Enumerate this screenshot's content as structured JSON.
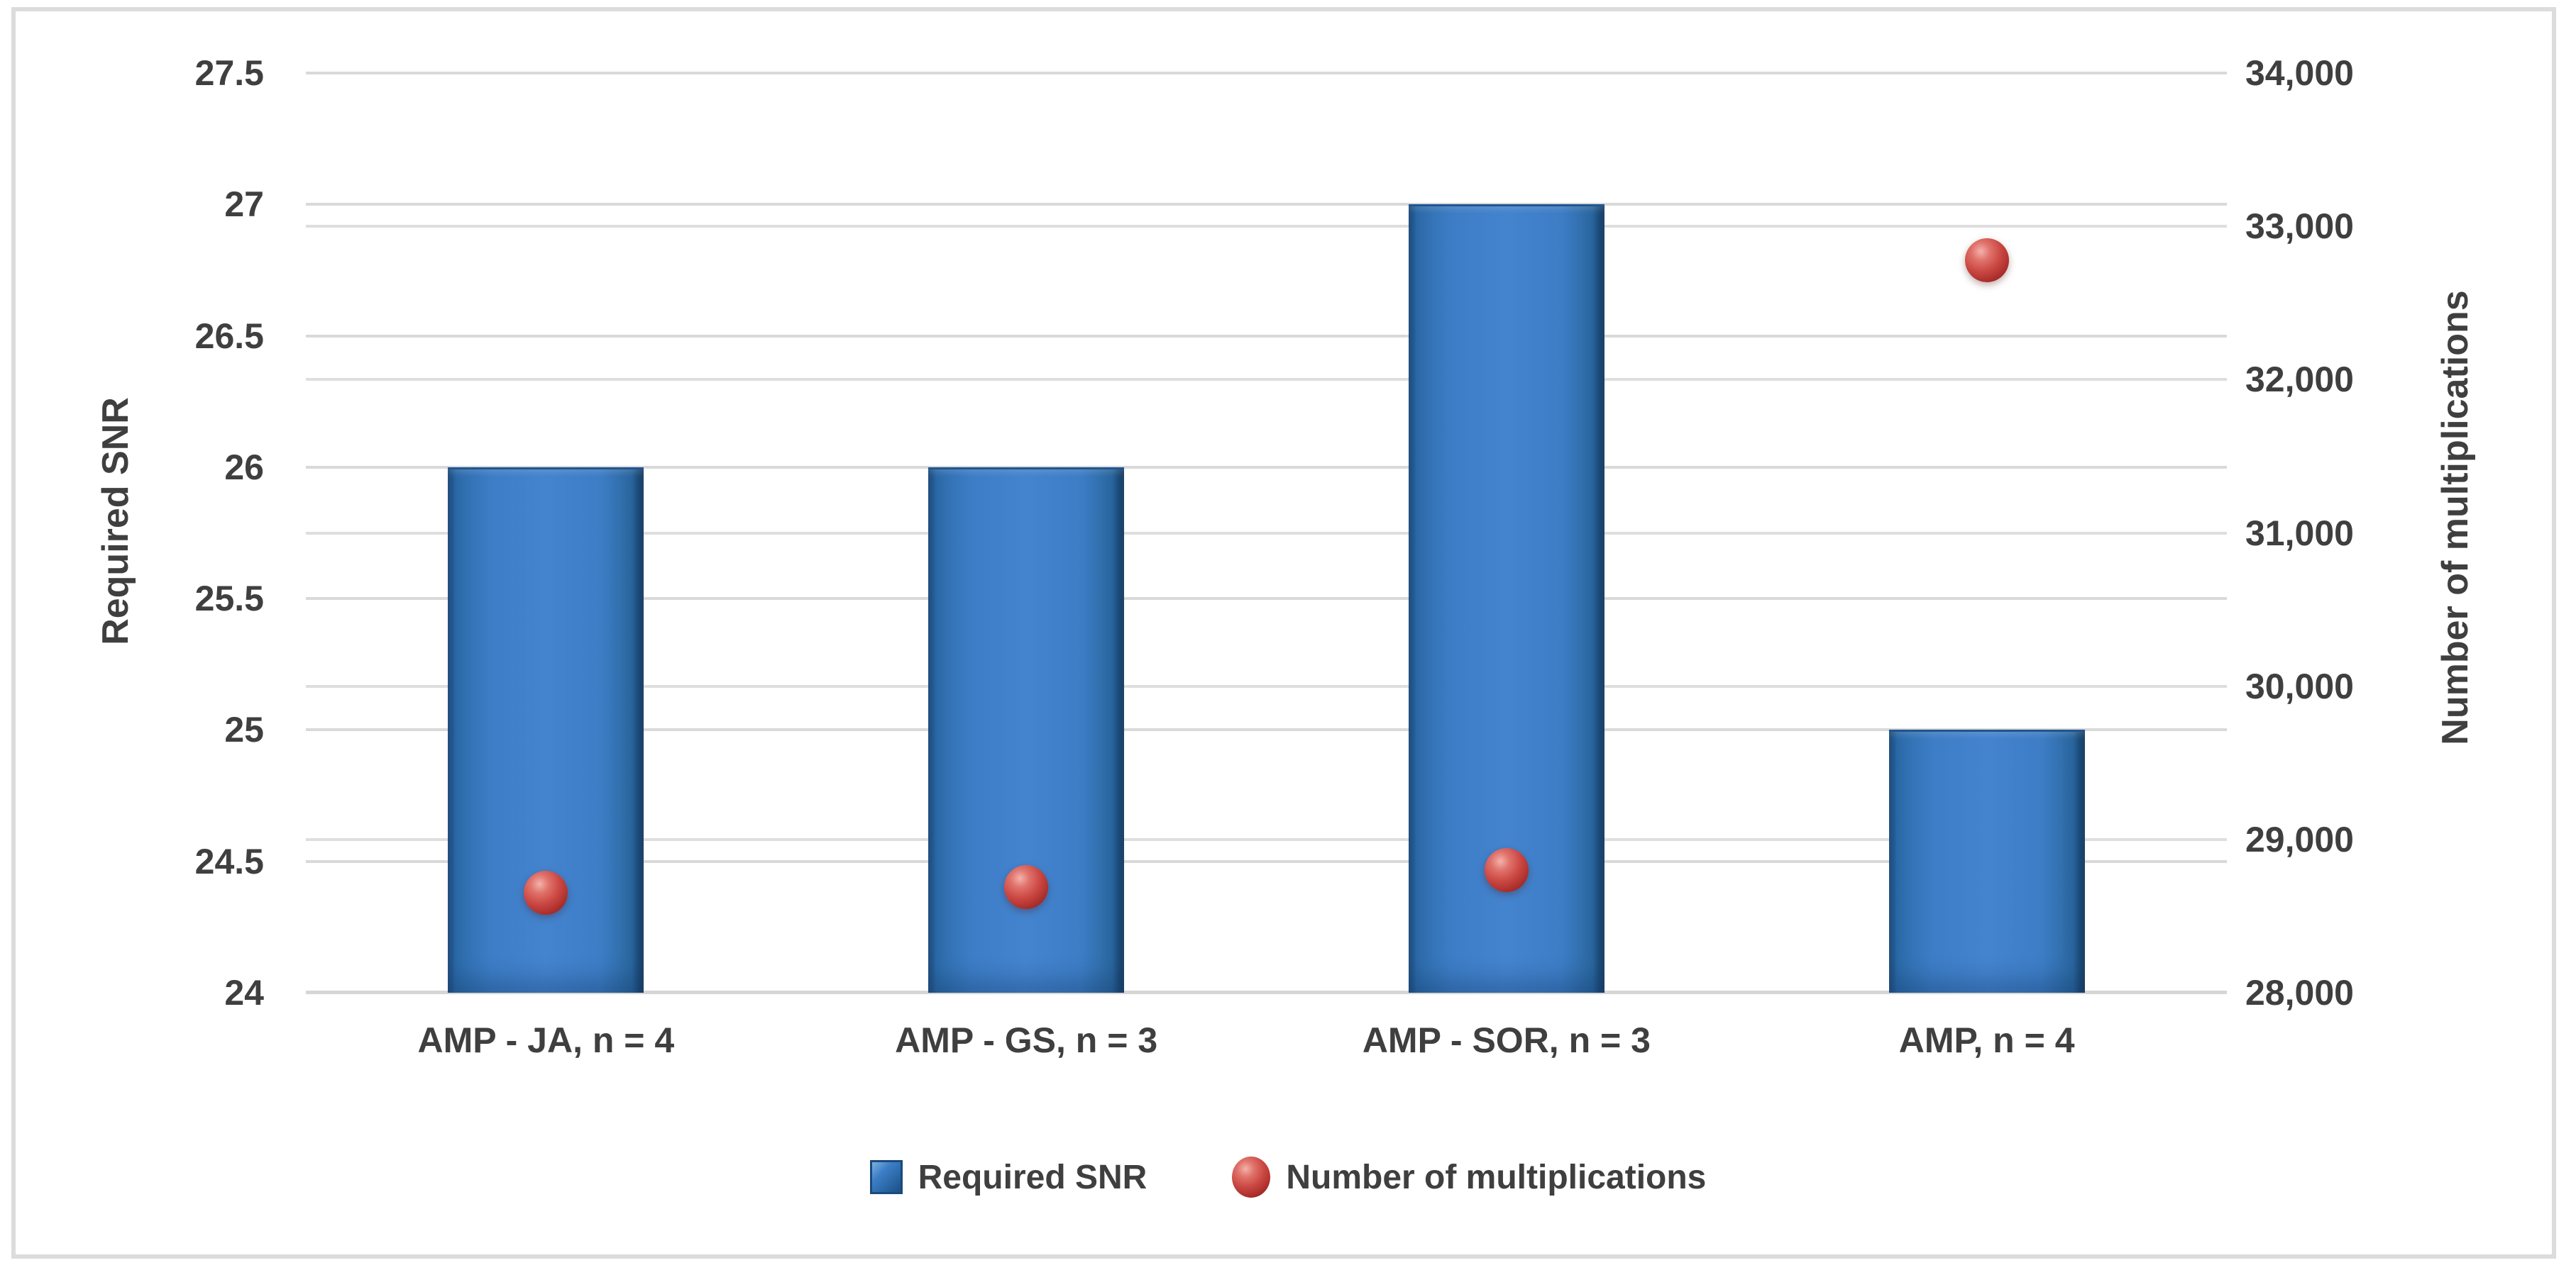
{
  "chart_data": {
    "type": "bar",
    "subtype": "combo-bar-scatter",
    "categories": [
      "AMP - JA, n = 4",
      "AMP - GS, n = 3",
      "AMP - SOR, n = 3",
      "AMP, n = 4"
    ],
    "series": [
      {
        "name": "Required SNR",
        "type": "bar",
        "axis": "left",
        "values": [
          26,
          26,
          27,
          25
        ]
      },
      {
        "name": "Number of multiplications",
        "type": "scatter",
        "axis": "right",
        "values": [
          28650,
          28690,
          28800,
          32780
        ]
      }
    ],
    "left_axis": {
      "title": "Required SNR",
      "min": 24,
      "max": 27.5,
      "step": 0.5,
      "tick_labels": [
        "24",
        "24.5",
        "25",
        "25.5",
        "26",
        "26.5",
        "27",
        "27.5"
      ]
    },
    "right_axis": {
      "title": "Number of multiplications",
      "min": 28000,
      "max": 34000,
      "step": 1000,
      "tick_labels": [
        "28,000",
        "29,000",
        "30,000",
        "31,000",
        "32,000",
        "33,000",
        "34,000"
      ]
    },
    "legend": [
      {
        "label": "Required SNR",
        "marker": "square"
      },
      {
        "label": "Number of multiplications",
        "marker": "sphere"
      }
    ],
    "grid": "on",
    "legend_position": "bottom",
    "colors": {
      "bar_blue": "#4183CE",
      "bar_edge_dark": "#16406E",
      "dot_red": "#CB4843",
      "gridline": "#D9D9D9",
      "text": "#3F3F3F",
      "frame_border": "#DCDCDC"
    }
  }
}
